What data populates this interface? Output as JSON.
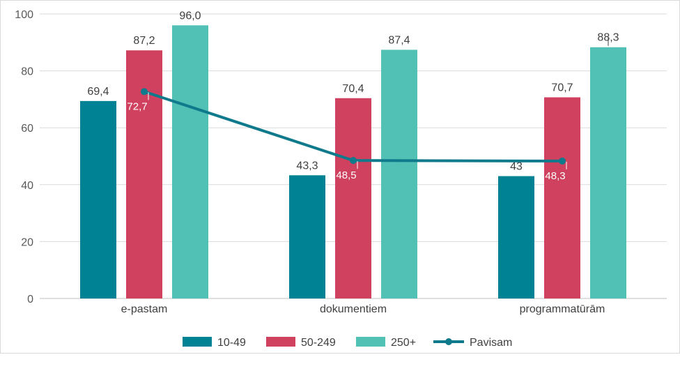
{
  "chart_data": {
    "type": "bar",
    "categories": [
      "e-pastam",
      "dokumentiem",
      "programmatūrām"
    ],
    "ylim": [
      0,
      100
    ],
    "yticks": [
      0,
      20,
      40,
      60,
      80,
      100
    ],
    "grid": true,
    "legend_position": "bottom",
    "series": [
      {
        "name": "10-49",
        "type": "bar",
        "color": "#008295",
        "values": [
          69.4,
          43.3,
          43.0
        ],
        "labels": [
          "69,4",
          "43,3",
          "43"
        ]
      },
      {
        "name": "50-249",
        "type": "bar",
        "color": "#D0415F",
        "values": [
          87.2,
          70.4,
          70.7
        ],
        "labels": [
          "87,2",
          "70,4",
          "70,7"
        ]
      },
      {
        "name": "250+",
        "type": "bar",
        "color": "#52C1B5",
        "values": [
          96.0,
          87.4,
          88.3
        ],
        "labels": [
          "96,0",
          "87,4",
          "88,3"
        ]
      },
      {
        "name": "Pavisam",
        "type": "line",
        "color": "#0F7A8C",
        "values": [
          72.7,
          48.5,
          48.3
        ],
        "labels": [
          "72,7",
          "48,5",
          "48,3"
        ]
      }
    ]
  }
}
